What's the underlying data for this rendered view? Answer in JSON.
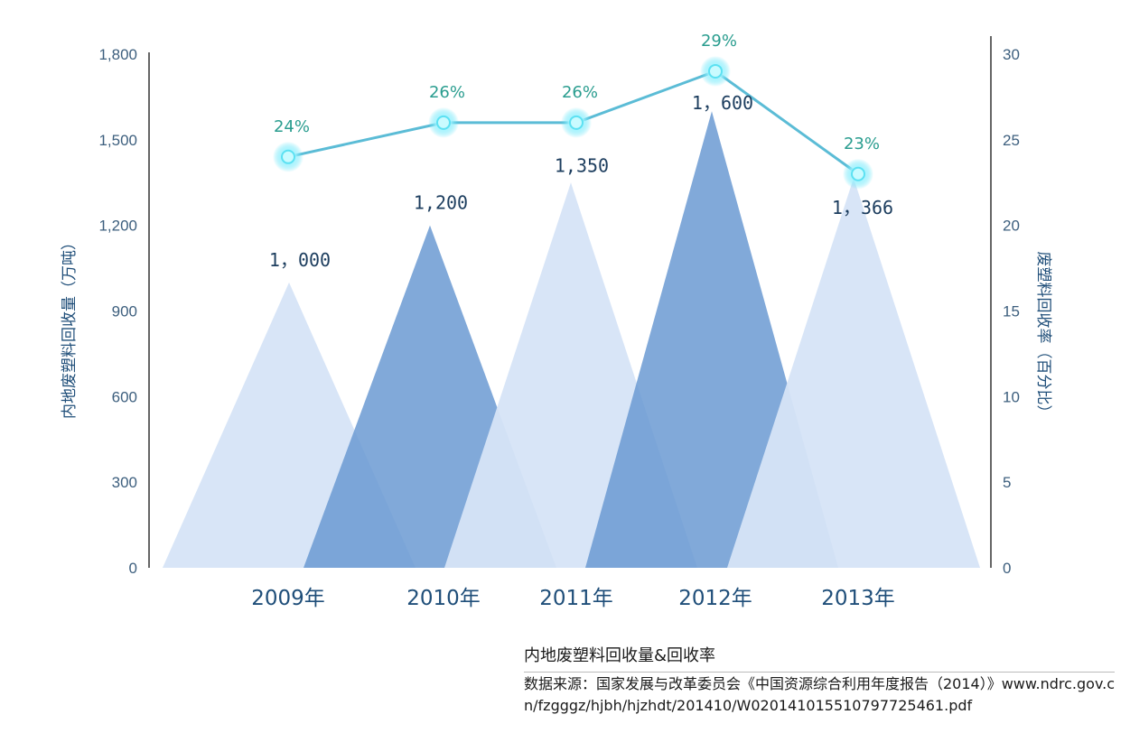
{
  "chart_data": {
    "type": "bar+line",
    "categories": [
      "2009年",
      "2010年",
      "2011年",
      "2012年",
      "2013年"
    ],
    "series": [
      {
        "name": "内地废塑料回收量",
        "axis": "left",
        "values": [
          1000,
          1200,
          1350,
          1600,
          1366
        ],
        "labels": [
          "1，000",
          "1,200",
          "1,350",
          "1，600",
          "1，366"
        ],
        "colors": [
          "#d6e4f7",
          "#6b9ad2",
          "#d6e4f7",
          "#6b9ad2",
          "#d6e4f7"
        ]
      },
      {
        "name": "废塑料回收率",
        "axis": "right",
        "values": [
          24,
          26,
          26,
          29,
          23
        ],
        "labels": [
          "24%",
          "26%",
          "26%",
          "29%",
          "23%"
        ],
        "color": "#5bbcd6"
      }
    ],
    "left_axis": {
      "label": "内地废塑料回收量（万吨）",
      "min": 0,
      "max": 1800,
      "ticks": [
        "0",
        "300",
        "600",
        "900",
        "1,200",
        "1,500",
        "1,800"
      ],
      "tick_values": [
        0,
        300,
        600,
        900,
        1200,
        1500,
        1800
      ]
    },
    "right_axis": {
      "label": "废塑料回收率（百分比）",
      "min": 0,
      "max": 30,
      "ticks": [
        "0",
        "5",
        "10",
        "15",
        "20",
        "25",
        "30"
      ],
      "tick_values": [
        0,
        5,
        10,
        15,
        20,
        25,
        30
      ]
    },
    "title": "内地废塑料回收量&回收率",
    "source": "数据来源：国家发展与改革委员会《中国资源综合利用年度报告（2014）》www.ndrc.gov.cn/fzgggz/hjbh/hjzhdt/201410/W020141015510797725461.pdf"
  }
}
